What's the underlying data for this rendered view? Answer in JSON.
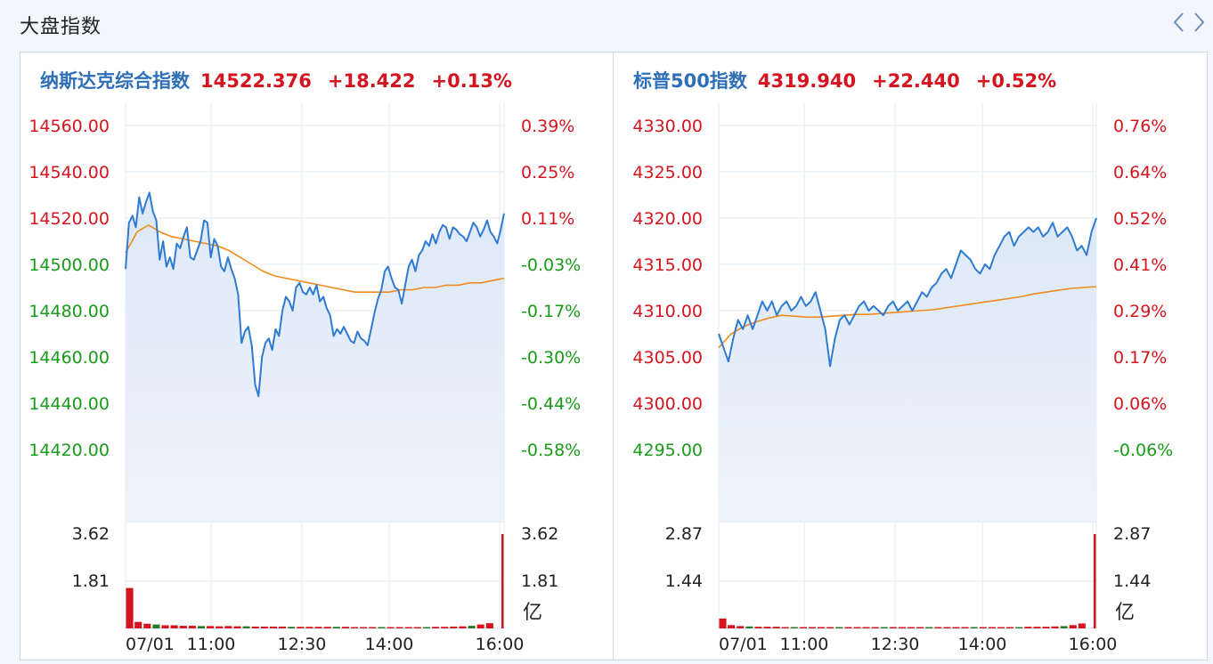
{
  "header": {
    "title": "大盘指数"
  },
  "colors": {
    "price_line": "#2f7bd2",
    "avg_line": "#f08a1e",
    "up": "#d4141e",
    "down": "#1a9a1a",
    "grid": "#e1ebf6",
    "fill": "#dde8f8",
    "volume": "#d4141e"
  },
  "panels": [
    {
      "name": "纳斯达克综合指数",
      "value": "14522.376",
      "change": "+18.422",
      "change_pct": "+0.13%"
    },
    {
      "name": "标普500指数",
      "value": "4319.940",
      "change": "+22.440",
      "change_pct": "+0.52%"
    }
  ],
  "chart_data": [
    {
      "type": "line",
      "title": "纳斯达克综合指数",
      "y_tick_labels": [
        "14560.00",
        "14540.00",
        "14520.00",
        "14500.00",
        "14480.00",
        "14460.00",
        "14440.00",
        "14420.00"
      ],
      "y_tick_values": [
        14560,
        14540,
        14520,
        14500,
        14480,
        14460,
        14440,
        14420
      ],
      "pct_tick_labels": [
        "0.39%",
        "0.25%",
        "0.11%",
        "-0.03%",
        "-0.17%",
        "-0.30%",
        "-0.44%",
        "-0.58%"
      ],
      "ylim": [
        14412,
        14568
      ],
      "x_tick_labels": [
        "07/01",
        "11:00",
        "12:30",
        "14:00",
        "16:00"
      ],
      "series": [
        {
          "role": "price",
          "values": [
            14498,
            14518,
            14521,
            14516,
            14529,
            14522,
            14527,
            14531,
            14523,
            14519,
            14502,
            14510,
            14499,
            14503,
            14498,
            14509,
            14507,
            14512,
            14516,
            14503,
            14502,
            14506,
            14510,
            14519,
            14518,
            14503,
            14511,
            14508,
            14499,
            14497,
            14503,
            14498,
            14494,
            14487,
            14466,
            14471,
            14473,
            14465,
            14448,
            14443,
            14460,
            14466,
            14468,
            14463,
            14472,
            14469,
            14480,
            14486,
            14484,
            14480,
            14490,
            14492,
            14488,
            14487,
            14490,
            14487,
            14491,
            14484,
            14486,
            14481,
            14478,
            14469,
            14472,
            14470,
            14473,
            14470,
            14467,
            14466,
            14471,
            14468,
            14467,
            14465,
            14472,
            14479,
            14485,
            14489,
            14497,
            14499,
            14494,
            14490,
            14489,
            14483,
            14491,
            14499,
            14502,
            14497,
            14504,
            14506,
            14510,
            14508,
            14513,
            14509,
            14514,
            14517,
            14516,
            14511,
            14516,
            14515,
            14513,
            14512,
            14510,
            14514,
            14518,
            14516,
            14512,
            14515,
            14519,
            14514,
            14512,
            14509,
            14515,
            14522
          ]
        },
        {
          "role": "average",
          "values": [
            14505,
            14514,
            14517,
            14514,
            14512,
            14511,
            14510,
            14509,
            14508,
            14506,
            14503,
            14500,
            14497,
            14495,
            14494,
            14493,
            14492,
            14491,
            14490,
            14489,
            14488,
            14488,
            14488,
            14488,
            14489,
            14489,
            14490,
            14490,
            14491,
            14491,
            14492,
            14492,
            14493,
            14494
          ]
        }
      ],
      "volume": {
        "unit": "亿",
        "tick_labels": [
          "3.62",
          "1.81"
        ],
        "ymax": 3.62,
        "values": [
          1.55,
          0.25,
          0.18,
          0.15,
          0.12,
          0.12,
          0.1,
          0.1,
          0.09,
          0.09,
          0.08,
          0.09,
          0.08,
          0.08,
          0.07,
          0.07,
          0.07,
          0.07,
          0.06,
          0.06,
          0.06,
          0.06,
          0.06,
          0.06,
          0.06,
          0.05,
          0.05,
          0.05,
          0.05,
          0.05,
          0.05,
          0.05,
          0.05,
          0.05,
          0.06,
          0.06,
          0.07,
          0.08,
          0.1,
          0.15,
          0.2,
          3.62
        ]
      }
    },
    {
      "type": "line",
      "title": "标普500指数",
      "y_tick_labels": [
        "4330.00",
        "4325.00",
        "4320.00",
        "4315.00",
        "4310.00",
        "4305.00",
        "4300.00",
        "4295.00"
      ],
      "y_tick_values": [
        4330,
        4325,
        4320,
        4315,
        4310,
        4305,
        4300,
        4295
      ],
      "pct_tick_labels": [
        "0.76%",
        "0.64%",
        "0.52%",
        "0.41%",
        "0.29%",
        "0.17%",
        "0.06%",
        "-0.06%"
      ],
      "ylim": [
        4293,
        4331.5
      ],
      "x_tick_labels": [
        "07/01",
        "11:00",
        "12:30",
        "14:00",
        "16:00"
      ],
      "series": [
        {
          "role": "price",
          "values": [
            4307.5,
            4306,
            4304.5,
            4307,
            4309,
            4308,
            4309.5,
            4308,
            4309.5,
            4311,
            4310,
            4311,
            4309.5,
            4310.5,
            4311,
            4310,
            4310.5,
            4311.5,
            4310.5,
            4311,
            4312,
            4310,
            4308,
            4304,
            4307,
            4309,
            4309.5,
            4308.5,
            4309.5,
            4310.5,
            4311,
            4310,
            4310.5,
            4310,
            4309.5,
            4310.5,
            4311,
            4310,
            4310.5,
            4311,
            4310,
            4311,
            4312,
            4311.5,
            4312.5,
            4313,
            4314,
            4314.5,
            4313.5,
            4315,
            4316.5,
            4316,
            4315.5,
            4314.5,
            4314,
            4315,
            4314.5,
            4316,
            4317,
            4318,
            4318.5,
            4317,
            4318,
            4318.5,
            4319,
            4318.5,
            4319,
            4318,
            4318.5,
            4319.5,
            4318,
            4318.5,
            4319,
            4318,
            4316.5,
            4317,
            4316,
            4318.5,
            4320
          ]
        },
        {
          "role": "average",
          "values": [
            4306,
            4307.5,
            4308.3,
            4308.8,
            4309.2,
            4309.5,
            4309.4,
            4309.3,
            4309.3,
            4309.4,
            4309.5,
            4309.6,
            4309.6,
            4309.7,
            4309.8,
            4309.9,
            4310,
            4310.1,
            4310.3,
            4310.5,
            4310.7,
            4310.9,
            4311.1,
            4311.3,
            4311.5,
            4311.8,
            4312,
            4312.2,
            4312.4,
            4312.5,
            4312.6
          ]
        }
      ],
      "volume": {
        "unit": "亿",
        "tick_labels": [
          "2.87",
          "1.44"
        ],
        "ymax": 2.87,
        "values": [
          0.3,
          0.1,
          0.07,
          0.06,
          0.05,
          0.05,
          0.05,
          0.04,
          0.04,
          0.04,
          0.04,
          0.04,
          0.04,
          0.04,
          0.04,
          0.04,
          0.04,
          0.04,
          0.04,
          0.04,
          0.04,
          0.04,
          0.04,
          0.04,
          0.04,
          0.04,
          0.04,
          0.04,
          0.04,
          0.04,
          0.04,
          0.04,
          0.04,
          0.04,
          0.05,
          0.05,
          0.05,
          0.06,
          0.07,
          0.1,
          0.15,
          2.87
        ]
      }
    }
  ]
}
